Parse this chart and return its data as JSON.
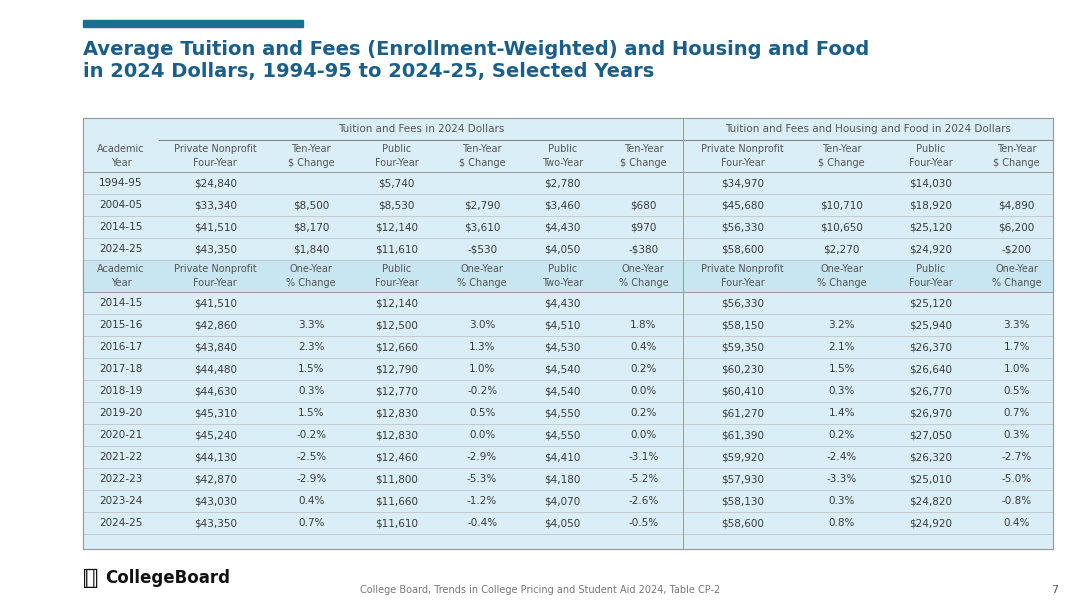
{
  "title_line1": "Average Tuition and Fees (Enrollment-Weighted) and Housing and Food",
  "title_line2": "in 2024 Dollars, 1994-95 to 2024-25, Selected Years",
  "accent_bar_color": "#1a6e8f",
  "title_color": "#1a5e8a",
  "background_color": "#ffffff",
  "table_bg": "#daeef7",
  "header_section1": "Tuition and Fees in 2024 Dollars",
  "header_section2": "Tuition and Fees and Housing and Food in 2024 Dollars",
  "col_headers_row1": [
    "Academic\nYear",
    "Private Nonprofit\nFour-Year",
    "Ten-Year\n$ Change",
    "Public\nFour-Year",
    "Ten-Year\n$ Change",
    "Public\nTwo-Year",
    "Ten-Year\n$ Change",
    "Private Nonprofit\nFour-Year",
    "Ten-Year\n$ Change",
    "Public\nFour-Year",
    "Ten-Year\n$ Change"
  ],
  "col_headers_row2": [
    "Academic\nYear",
    "Private Nonprofit\nFour-Year",
    "One-Year\n% Change",
    "Public\nFour-Year",
    "One-Year\n% Change",
    "Public\nTwo-Year",
    "One-Year\n% Change",
    "Private Nonprofit\nFour-Year",
    "One-Year\n% Change",
    "Public\nFour-Year",
    "One-Year\n% Change"
  ],
  "ten_year_rows": [
    [
      "1994-95",
      "$24,840",
      "",
      "$5,740",
      "",
      "$2,780",
      "",
      "$34,970",
      "",
      "$14,030",
      ""
    ],
    [
      "2004-05",
      "$33,340",
      "$8,500",
      "$8,530",
      "$2,790",
      "$3,460",
      "$680",
      "$45,680",
      "$10,710",
      "$18,920",
      "$4,890"
    ],
    [
      "2014-15",
      "$41,510",
      "$8,170",
      "$12,140",
      "$3,610",
      "$4,430",
      "$970",
      "$56,330",
      "$10,650",
      "$25,120",
      "$6,200"
    ],
    [
      "2024-25",
      "$43,350",
      "$1,840",
      "$11,610",
      "-$530",
      "$4,050",
      "-$380",
      "$58,600",
      "$2,270",
      "$24,920",
      "-$200"
    ]
  ],
  "one_year_rows": [
    [
      "2014-15",
      "$41,510",
      "",
      "$12,140",
      "",
      "$4,430",
      "",
      "$56,330",
      "",
      "$25,120",
      ""
    ],
    [
      "2015-16",
      "$42,860",
      "3.3%",
      "$12,500",
      "3.0%",
      "$4,510",
      "1.8%",
      "$58,150",
      "3.2%",
      "$25,940",
      "3.3%"
    ],
    [
      "2016-17",
      "$43,840",
      "2.3%",
      "$12,660",
      "1.3%",
      "$4,530",
      "0.4%",
      "$59,350",
      "2.1%",
      "$26,370",
      "1.7%"
    ],
    [
      "2017-18",
      "$44,480",
      "1.5%",
      "$12,790",
      "1.0%",
      "$4,540",
      "0.2%",
      "$60,230",
      "1.5%",
      "$26,640",
      "1.0%"
    ],
    [
      "2018-19",
      "$44,630",
      "0.3%",
      "$12,770",
      "-0.2%",
      "$4,540",
      "0.0%",
      "$60,410",
      "0.3%",
      "$26,770",
      "0.5%"
    ],
    [
      "2019-20",
      "$45,310",
      "1.5%",
      "$12,830",
      "0.5%",
      "$4,550",
      "0.2%",
      "$61,270",
      "1.4%",
      "$26,970",
      "0.7%"
    ],
    [
      "2020-21",
      "$45,240",
      "-0.2%",
      "$12,830",
      "0.0%",
      "$4,550",
      "0.0%",
      "$61,390",
      "0.2%",
      "$27,050",
      "0.3%"
    ],
    [
      "2021-22",
      "$44,130",
      "-2.5%",
      "$12,460",
      "-2.9%",
      "$4,410",
      "-3.1%",
      "$59,920",
      "-2.4%",
      "$26,320",
      "-2.7%"
    ],
    [
      "2022-23",
      "$42,870",
      "-2.9%",
      "$11,800",
      "-5.3%",
      "$4,180",
      "-5.2%",
      "$57,930",
      "-3.3%",
      "$25,010",
      "-5.0%"
    ],
    [
      "2023-24",
      "$43,030",
      "0.4%",
      "$11,660",
      "-1.2%",
      "$4,070",
      "-2.6%",
      "$58,130",
      "0.3%",
      "$24,820",
      "-0.8%"
    ],
    [
      "2024-25",
      "$43,350",
      "0.7%",
      "$11,610",
      "-0.4%",
      "$4,050",
      "-0.5%",
      "$58,600",
      "0.8%",
      "$24,920",
      "0.4%"
    ]
  ],
  "footer_text": "College Board, Trends in College Pricing and Student Aid 2024, Table CP-2",
  "page_number": "7",
  "text_color": "#3a3a3a",
  "header_text_color": "#555555",
  "collegeboard_logo_color": "#111111"
}
